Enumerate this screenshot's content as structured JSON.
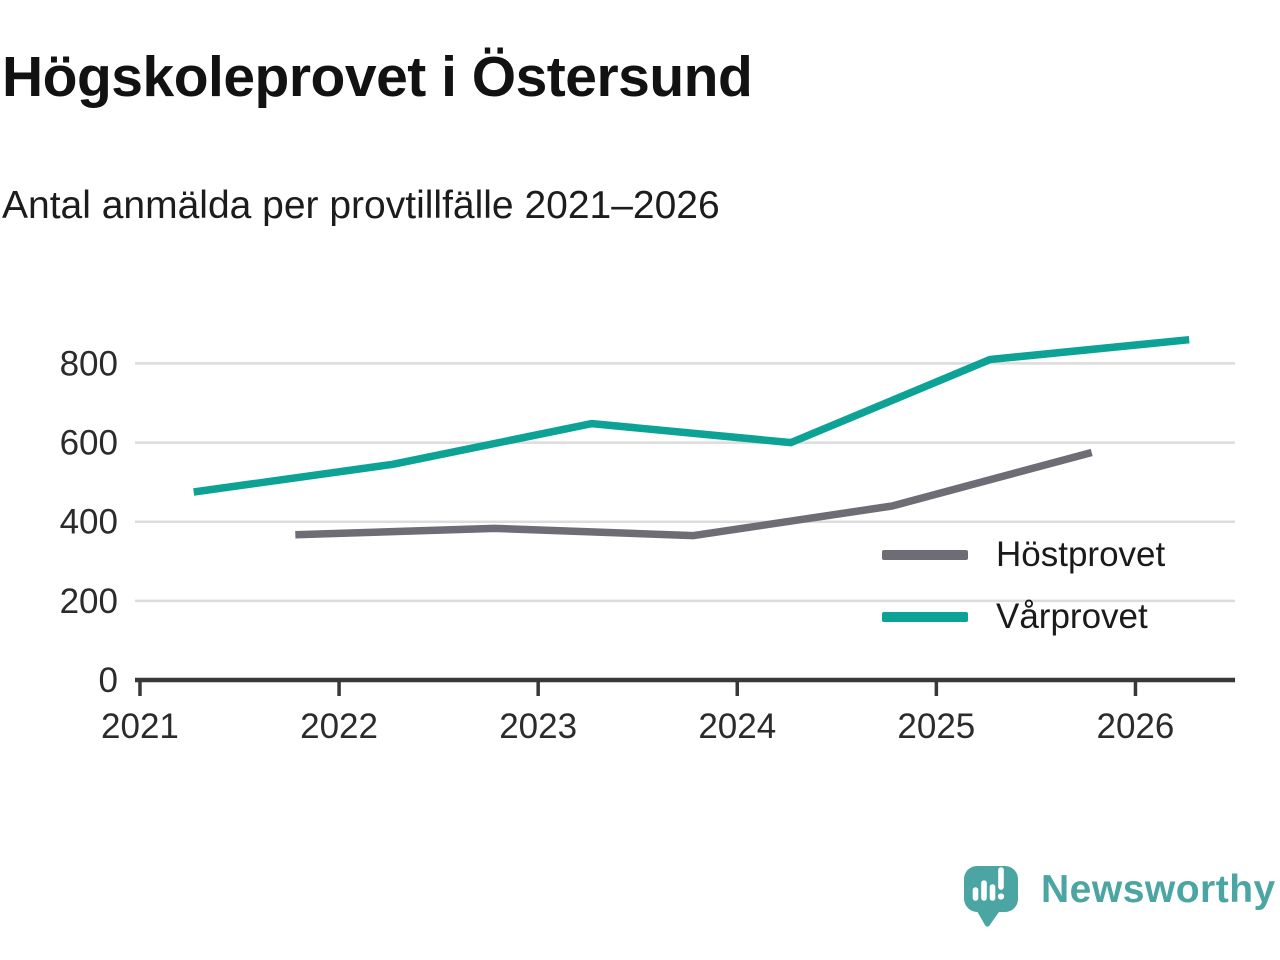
{
  "chart_data": {
    "type": "line",
    "title": "Högskoleprovet i Östersund",
    "subtitle": "Antal anmälda per provtillfälle 2021–2026",
    "xlabel": "",
    "ylabel": "",
    "x_ticks": [
      2021,
      2022,
      2023,
      2024,
      2025,
      2026
    ],
    "y_ticks": [
      0,
      200,
      400,
      600,
      800
    ],
    "gridlines": [
      200,
      400,
      600,
      800
    ],
    "xlim": [
      2020.975,
      2026.5
    ],
    "ylim": [
      0,
      935
    ],
    "grid": "horizontal",
    "legend_position": "inside-right-middle",
    "series": [
      {
        "name": "Höstprovet",
        "color": "#6E6D75",
        "x": [
          2021.78,
          2022.78,
          2023.78,
          2024.78,
          2025.78
        ],
        "values": [
          367,
          383,
          365,
          440,
          575
        ]
      },
      {
        "name": "Vårprovet",
        "color": "#0CA295",
        "x": [
          2021.27,
          2022.27,
          2023.27,
          2024.27,
          2025.27,
          2026.27
        ],
        "values": [
          475,
          545,
          648,
          600,
          810,
          860
        ]
      }
    ],
    "axis_color": "#383838",
    "gridline_color": "#dcdcdc",
    "tick_label_color": "#2b2b2b"
  },
  "logo": {
    "brand": "Newsworthy",
    "color": "#4BA5A2"
  }
}
